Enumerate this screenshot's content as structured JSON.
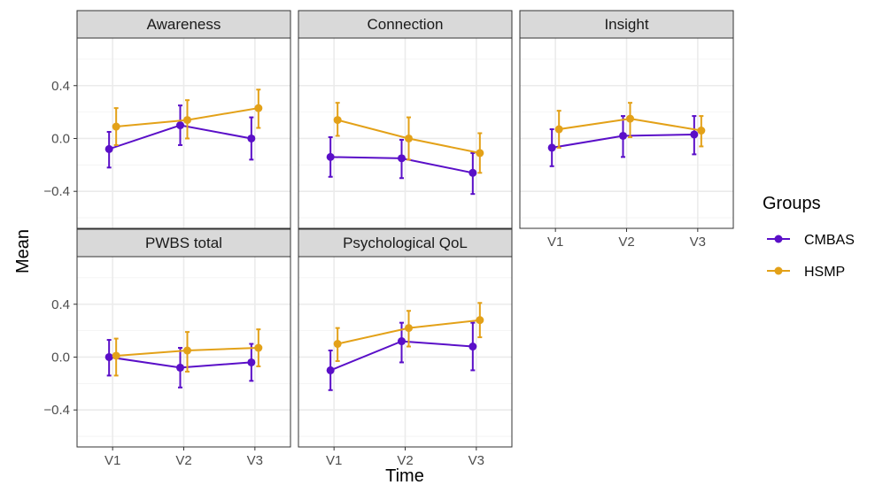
{
  "chart_data": {
    "type": "line",
    "xlabel": "Time",
    "ylabel": "Mean",
    "x": [
      "V1",
      "V2",
      "V3"
    ],
    "y_ticks": [
      -0.4,
      0.0,
      0.4
    ],
    "y_tick_labels": [
      "−0.4",
      "0.0",
      "0.4"
    ],
    "ylim": [
      -0.68,
      0.76
    ],
    "grid": true,
    "legend": {
      "title": "Groups",
      "position": "right",
      "entries": [
        {
          "name": "CMBAS",
          "color": "#5a0fc8"
        },
        {
          "name": "HSMP",
          "color": "#e3a118"
        }
      ]
    },
    "panels": [
      {
        "title": "Awareness",
        "series": [
          {
            "name": "CMBAS",
            "values": [
              -0.08,
              0.1,
              0.0
            ],
            "lower": [
              -0.22,
              -0.05,
              -0.16
            ],
            "upper": [
              0.05,
              0.25,
              0.16
            ]
          },
          {
            "name": "HSMP",
            "values": [
              0.09,
              0.14,
              0.23
            ],
            "lower": [
              -0.05,
              0.0,
              0.08
            ],
            "upper": [
              0.23,
              0.29,
              0.37
            ]
          }
        ]
      },
      {
        "title": "Connection",
        "series": [
          {
            "name": "CMBAS",
            "values": [
              -0.14,
              -0.15,
              -0.26
            ],
            "lower": [
              -0.29,
              -0.3,
              -0.42
            ],
            "upper": [
              0.01,
              -0.01,
              -0.11
            ]
          },
          {
            "name": "HSMP",
            "values": [
              0.14,
              0.0,
              -0.11
            ],
            "lower": [
              0.02,
              -0.16,
              -0.26
            ],
            "upper": [
              0.27,
              0.16,
              0.04
            ]
          }
        ]
      },
      {
        "title": "Insight",
        "series": [
          {
            "name": "CMBAS",
            "values": [
              -0.07,
              0.02,
              0.03
            ],
            "lower": [
              -0.21,
              -0.14,
              -0.12
            ],
            "upper": [
              0.07,
              0.17,
              0.17
            ]
          },
          {
            "name": "HSMP",
            "values": [
              0.07,
              0.15,
              0.06
            ],
            "lower": [
              -0.07,
              0.01,
              -0.06
            ],
            "upper": [
              0.21,
              0.27,
              0.17
            ]
          }
        ]
      },
      {
        "title": "PWBS total",
        "series": [
          {
            "name": "CMBAS",
            "values": [
              0.0,
              -0.08,
              -0.04
            ],
            "lower": [
              -0.14,
              -0.23,
              -0.18
            ],
            "upper": [
              0.13,
              0.07,
              0.1
            ]
          },
          {
            "name": "HSMP",
            "values": [
              0.01,
              0.05,
              0.07
            ],
            "lower": [
              -0.14,
              -0.11,
              -0.07
            ],
            "upper": [
              0.14,
              0.19,
              0.21
            ]
          }
        ]
      },
      {
        "title": "Psychological QoL",
        "series": [
          {
            "name": "CMBAS",
            "values": [
              -0.1,
              0.12,
              0.08
            ],
            "lower": [
              -0.25,
              -0.04,
              -0.1
            ],
            "upper": [
              0.05,
              0.26,
              0.26
            ]
          },
          {
            "name": "HSMP",
            "values": [
              0.1,
              0.22,
              0.28
            ],
            "lower": [
              -0.03,
              0.08,
              0.15
            ],
            "upper": [
              0.22,
              0.35,
              0.41
            ]
          }
        ]
      }
    ]
  }
}
